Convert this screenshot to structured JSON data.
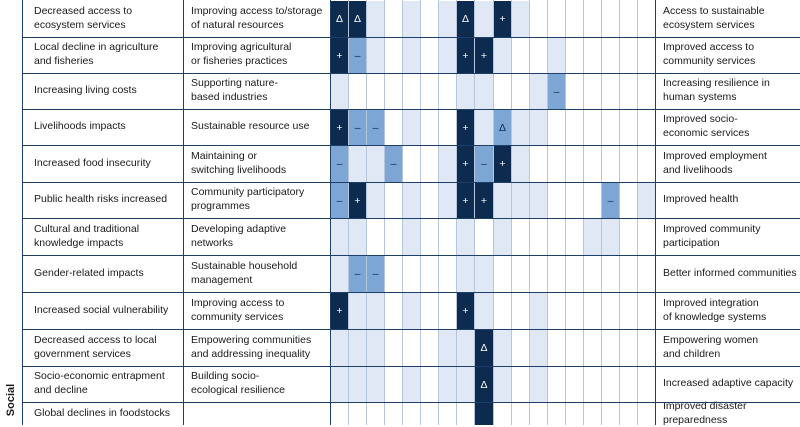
{
  "section_label": "Social",
  "rows": [
    {
      "impact": "Decreased access to\necosystem services",
      "response": "Improving access to/storage\nof natural resources",
      "outcome": "Access to sustainable\necosystem services",
      "cells": [
        {
          "c": 0,
          "t": "dark",
          "s": "Δ"
        },
        {
          "c": 1,
          "t": "dark",
          "s": "Δ"
        },
        {
          "c": 2,
          "t": "pale"
        },
        {
          "c": 4,
          "t": "pale"
        },
        {
          "c": 6,
          "t": "pale"
        },
        {
          "c": 7,
          "t": "dark",
          "s": "Δ"
        },
        {
          "c": 8,
          "t": "pale"
        },
        {
          "c": 9,
          "t": "dark",
          "s": "+"
        },
        {
          "c": 10,
          "t": "pale"
        }
      ]
    },
    {
      "impact": "Local decline in agriculture\nand fisheries",
      "response": "Improving agricultural\nor fisheries practices",
      "outcome": "Improved access to\ncommunity services",
      "cells": [
        {
          "c": 0,
          "t": "dark",
          "s": "+"
        },
        {
          "c": 1,
          "t": "mid",
          "s": "–"
        },
        {
          "c": 2,
          "t": "pale"
        },
        {
          "c": 4,
          "t": "pale"
        },
        {
          "c": 6,
          "t": "pale"
        },
        {
          "c": 7,
          "t": "dark",
          "s": "+"
        },
        {
          "c": 8,
          "t": "dark",
          "s": "+"
        },
        {
          "c": 9,
          "t": "pale"
        },
        {
          "c": 12,
          "t": "pale"
        }
      ]
    },
    {
      "impact": "Increasing living costs",
      "response": "Supporting nature-\nbased industries",
      "outcome": "Increasing resilience in\nhuman systems",
      "cells": [
        {
          "c": 0,
          "t": "pale"
        },
        {
          "c": 7,
          "t": "pale"
        },
        {
          "c": 8,
          "t": "pale"
        },
        {
          "c": 11,
          "t": "pale"
        },
        {
          "c": 12,
          "t": "mid",
          "s": "–"
        }
      ]
    },
    {
      "impact": "Livelihoods impacts",
      "response": "Sustainable resource use",
      "outcome": "Improved socio-\neconomic services",
      "cells": [
        {
          "c": 0,
          "t": "dark",
          "s": "+"
        },
        {
          "c": 1,
          "t": "mid",
          "s": "–"
        },
        {
          "c": 2,
          "t": "mid",
          "s": "–"
        },
        {
          "c": 4,
          "t": "pale"
        },
        {
          "c": 7,
          "t": "dark",
          "s": "+"
        },
        {
          "c": 8,
          "t": "pale"
        },
        {
          "c": 9,
          "t": "mid",
          "s": "Δ"
        },
        {
          "c": 10,
          "t": "pale"
        },
        {
          "c": 11,
          "t": "pale"
        }
      ]
    },
    {
      "impact": "Increased food insecurity",
      "response": "Maintaining or\nswitching livelihoods",
      "outcome": "Improved employment\nand livelihoods",
      "cells": [
        {
          "c": 0,
          "t": "mid",
          "s": "–"
        },
        {
          "c": 1,
          "t": "pale"
        },
        {
          "c": 2,
          "t": "pale"
        },
        {
          "c": 3,
          "t": "mid",
          "s": "–"
        },
        {
          "c": 6,
          "t": "pale"
        },
        {
          "c": 7,
          "t": "dark",
          "s": "+"
        },
        {
          "c": 8,
          "t": "mid",
          "s": "–"
        },
        {
          "c": 9,
          "t": "dark",
          "s": "+"
        },
        {
          "c": 10,
          "t": "pale"
        }
      ]
    },
    {
      "impact": "Public health risks increased",
      "response": "Community participatory\nprogrammes",
      "outcome": "Improved health",
      "cells": [
        {
          "c": 0,
          "t": "mid",
          "s": "–"
        },
        {
          "c": 1,
          "t": "dark",
          "s": "+"
        },
        {
          "c": 2,
          "t": "pale"
        },
        {
          "c": 4,
          "t": "pale"
        },
        {
          "c": 6,
          "t": "pale"
        },
        {
          "c": 7,
          "t": "dark",
          "s": "+"
        },
        {
          "c": 8,
          "t": "dark",
          "s": "+"
        },
        {
          "c": 9,
          "t": "pale"
        },
        {
          "c": 10,
          "t": "pale"
        },
        {
          "c": 11,
          "t": "pale"
        },
        {
          "c": 15,
          "t": "mid",
          "s": "–"
        },
        {
          "c": 17,
          "t": "pale"
        }
      ]
    },
    {
      "impact": "Cultural and traditional\nknowledge impacts",
      "response": "Developing adaptive networks",
      "outcome": "Improved community\nparticipation",
      "cells": [
        {
          "c": 0,
          "t": "pale"
        },
        {
          "c": 1,
          "t": "pale"
        },
        {
          "c": 4,
          "t": "pale"
        },
        {
          "c": 7,
          "t": "pale"
        },
        {
          "c": 9,
          "t": "pale"
        },
        {
          "c": 14,
          "t": "pale"
        },
        {
          "c": 15,
          "t": "pale"
        }
      ]
    },
    {
      "impact": "Gender-related impacts",
      "response": "Sustainable household\nmanagement",
      "outcome": "Better informed communities",
      "cells": [
        {
          "c": 0,
          "t": "pale"
        },
        {
          "c": 1,
          "t": "mid",
          "s": "–"
        },
        {
          "c": 2,
          "t": "mid",
          "s": "–"
        },
        {
          "c": 7,
          "t": "pale"
        },
        {
          "c": 8,
          "t": "pale"
        }
      ]
    },
    {
      "impact": "Increased social vulnerability",
      "response": "Improving access to\ncommunity services",
      "outcome": "Improved integration\nof knowledge systems",
      "cells": [
        {
          "c": 0,
          "t": "dark",
          "s": "+"
        },
        {
          "c": 1,
          "t": "pale"
        },
        {
          "c": 2,
          "t": "pale"
        },
        {
          "c": 4,
          "t": "pale"
        },
        {
          "c": 7,
          "t": "dark",
          "s": "+"
        },
        {
          "c": 8,
          "t": "pale"
        },
        {
          "c": 11,
          "t": "pale"
        }
      ]
    },
    {
      "impact": "Decreased access to local\ngovernment services",
      "response": "Empowering communities\nand addressing inequality",
      "outcome": "Empowering women\nand children",
      "cells": [
        {
          "c": 0,
          "t": "pale"
        },
        {
          "c": 1,
          "t": "pale"
        },
        {
          "c": 2,
          "t": "pale"
        },
        {
          "c": 6,
          "t": "pale"
        },
        {
          "c": 7,
          "t": "pale"
        },
        {
          "c": 8,
          "t": "dark",
          "s": "Δ"
        },
        {
          "c": 9,
          "t": "pale"
        },
        {
          "c": 11,
          "t": "pale"
        }
      ]
    },
    {
      "impact": "Socio-economic entrapment\nand decline",
      "response": "Building socio-\necological resilience",
      "outcome": "Increased adaptive capacity",
      "cells": [
        {
          "c": 0,
          "t": "pale"
        },
        {
          "c": 1,
          "t": "pale"
        },
        {
          "c": 2,
          "t": "pale"
        },
        {
          "c": 4,
          "t": "pale"
        },
        {
          "c": 6,
          "t": "pale"
        },
        {
          "c": 7,
          "t": "pale"
        },
        {
          "c": 8,
          "t": "dark",
          "s": "Δ"
        },
        {
          "c": 9,
          "t": "pale"
        },
        {
          "c": 11,
          "t": "pale"
        }
      ]
    },
    {
      "impact": "Global declines in foodstocks",
      "response": "",
      "outcome": "Improved disaster preparedness",
      "cells": [
        {
          "c": 8,
          "t": "dark"
        }
      ]
    }
  ],
  "colors": {
    "line": "#1f3f6b",
    "dark": "#0d2a4f",
    "mid": "#7ea6d4",
    "pale": "#dfe8f4"
  }
}
